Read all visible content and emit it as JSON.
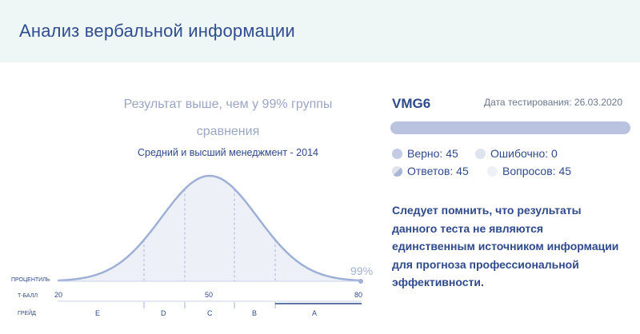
{
  "header": {
    "title": "Анализ вербальной информации"
  },
  "chart": {
    "result_line1": "Результат выше, чем у 99% группы",
    "result_line2": "сравнения",
    "group": "Средний и высший менеджмент - 2014",
    "row_labels": {
      "percentile": "ПРОЦЕНТИЛЬ",
      "tscore": "Т-БАЛЛ",
      "grade": "ГРЕЙД"
    },
    "t_ticks": [
      "20",
      "50",
      "80"
    ],
    "grades": [
      "E",
      "D",
      "C",
      "B",
      "A"
    ],
    "percentile_value": "99%",
    "colors": {
      "curve": "#9fb0d6",
      "fill": "#eef0f8",
      "label": "#2f4a8a"
    }
  },
  "result": {
    "test_name": "VMG6",
    "date_text": "Дата тестирования: 26.03.2020",
    "progress": 1.0,
    "stats": {
      "correct": "Верно: 45",
      "wrong": "Ошибочно: 0",
      "answers": "Ответов: 45",
      "questions": "Вопросов: 45"
    },
    "note_lines": [
      "Следует помнить, что результаты",
      "данного теста не являются",
      "единственным источником информации",
      "для прогноза профессиональной",
      "эффективности."
    ]
  }
}
